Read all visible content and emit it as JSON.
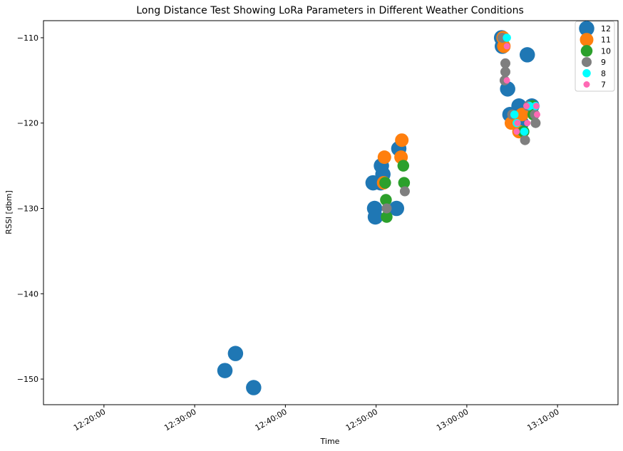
{
  "chart_data": {
    "type": "scatter",
    "title": "Long Distance Test Showing LoRa Parameters in Different Weather Conditions",
    "xlabel": "Time",
    "ylabel": "RSSI [dbm]",
    "xlim": [
      "12:13:20",
      "13:16:40"
    ],
    "ylim": [
      -153,
      -108
    ],
    "x_ticks": [
      "12:20:00",
      "12:30:00",
      "12:40:00",
      "12:50:00",
      "13:00:00",
      "13:10:00"
    ],
    "y_ticks": [
      -110,
      -120,
      -130,
      -140,
      -150
    ],
    "grid": false,
    "legend_position": "top-right",
    "series": [
      {
        "name": "12",
        "color": "#1f77b4",
        "points": [
          [
            "12:33:20",
            -149
          ],
          [
            "12:34:30",
            -147
          ],
          [
            "12:36:30",
            -151
          ],
          [
            "12:49:40",
            -127
          ],
          [
            "12:49:50",
            -130
          ],
          [
            "12:49:55",
            -131
          ],
          [
            "12:50:30",
            -127
          ],
          [
            "12:50:35",
            -125
          ],
          [
            "12:50:45",
            -126
          ],
          [
            "12:52:15",
            -130
          ],
          [
            "12:52:30",
            -123
          ],
          [
            "13:03:50",
            -110
          ],
          [
            "13:03:55",
            -111
          ],
          [
            "13:04:30",
            -116
          ],
          [
            "13:04:45",
            -119
          ],
          [
            "13:05:45",
            -118
          ],
          [
            "13:06:00",
            -120
          ],
          [
            "13:06:40",
            -112
          ],
          [
            "13:07:10",
            -118
          ]
        ]
      },
      {
        "name": "11",
        "color": "#ff7f0e",
        "points": [
          [
            "12:50:50",
            -127
          ],
          [
            "12:50:55",
            -124
          ],
          [
            "12:52:45",
            -124
          ],
          [
            "12:52:50",
            -122
          ],
          [
            "13:04:00",
            -110
          ],
          [
            "13:04:05",
            -111
          ],
          [
            "13:04:55",
            -120
          ],
          [
            "13:05:45",
            -121
          ],
          [
            "13:06:05",
            -119
          ]
        ]
      },
      {
        "name": "10",
        "color": "#2ca02c",
        "points": [
          [
            "12:51:00",
            -127
          ],
          [
            "12:51:05",
            -129
          ],
          [
            "12:51:10",
            -131
          ],
          [
            "12:53:00",
            -125
          ],
          [
            "12:53:05",
            -127
          ],
          [
            "13:06:15",
            -121
          ],
          [
            "13:07:15",
            -118
          ],
          [
            "13:07:20",
            -119
          ]
        ]
      },
      {
        "name": "9",
        "color": "#7f7f7f",
        "points": [
          [
            "12:51:10",
            -130
          ],
          [
            "12:53:10",
            -128
          ],
          [
            "13:03:55",
            -110
          ],
          [
            "13:04:15",
            -113
          ],
          [
            "13:04:15",
            -114
          ],
          [
            "13:04:10",
            -115
          ],
          [
            "13:05:00",
            -119
          ],
          [
            "13:06:25",
            -122
          ],
          [
            "13:07:30",
            -119
          ],
          [
            "13:07:35",
            -120
          ],
          [
            "13:06:45",
            -118
          ]
        ]
      },
      {
        "name": "8",
        "color": "#00ffff",
        "points": [
          [
            "13:04:25",
            -110
          ],
          [
            "13:05:15",
            -119
          ],
          [
            "13:05:30",
            -120
          ],
          [
            "13:06:20",
            -121
          ],
          [
            "13:06:55",
            -118
          ],
          [
            "13:07:35",
            -118
          ]
        ]
      },
      {
        "name": "7",
        "color": "#ff69b4",
        "points": [
          [
            "13:04:25",
            -111
          ],
          [
            "13:04:25",
            -115
          ],
          [
            "13:05:30",
            -121
          ],
          [
            "13:05:35",
            -120
          ],
          [
            "13:06:35",
            -118
          ],
          [
            "13:06:40",
            -120
          ],
          [
            "13:07:40",
            -118
          ],
          [
            "13:07:45",
            -119
          ]
        ]
      }
    ]
  }
}
